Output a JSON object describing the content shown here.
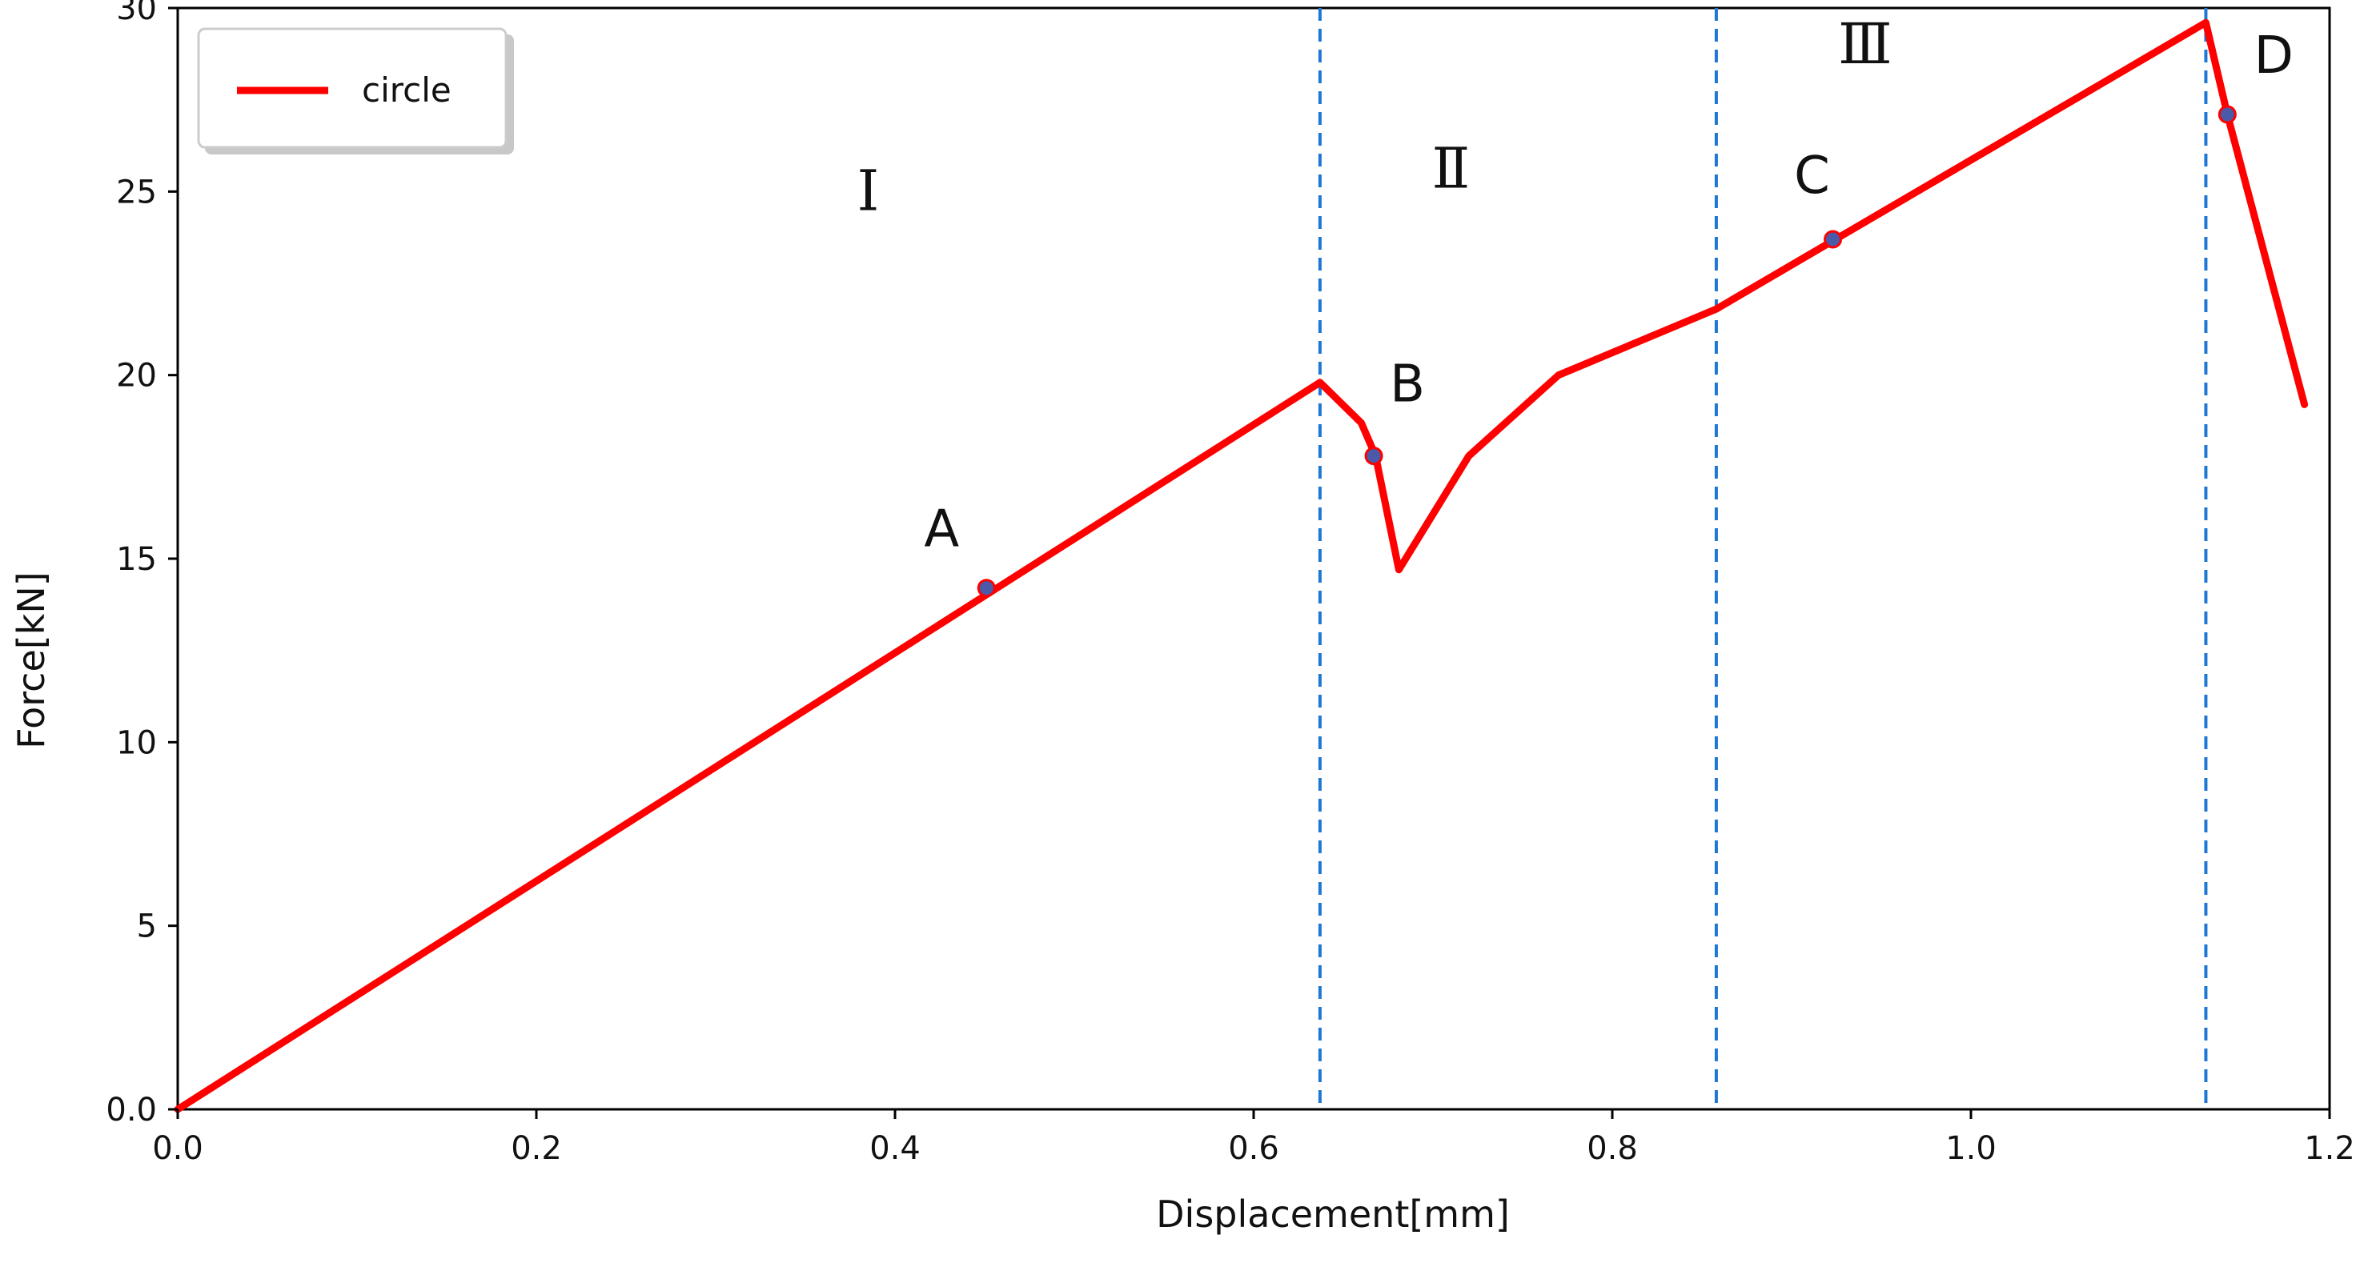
{
  "chart_data": {
    "type": "line",
    "title": "",
    "xlabel": "Displacement[mm]",
    "ylabel": "Force[kN]",
    "xlim": [
      0.0,
      1.2
    ],
    "ylim": [
      0.0,
      30
    ],
    "grid": false,
    "legend_position": "top-left",
    "x_ticks": [
      {
        "value": 0.0,
        "label": "0.0"
      },
      {
        "value": 0.2,
        "label": "0.2"
      },
      {
        "value": 0.4,
        "label": "0.4"
      },
      {
        "value": 0.6,
        "label": "0.6"
      },
      {
        "value": 0.8,
        "label": "0.8"
      },
      {
        "value": 1.0,
        "label": "1.0"
      },
      {
        "value": 1.2,
        "label": "1.2"
      }
    ],
    "y_ticks": [
      {
        "value": 0,
        "label": "0.0"
      },
      {
        "value": 5,
        "label": "5"
      },
      {
        "value": 10,
        "label": "10"
      },
      {
        "value": 15,
        "label": "15"
      },
      {
        "value": 20,
        "label": "20"
      },
      {
        "value": 25,
        "label": "25"
      },
      {
        "value": 30,
        "label": "30"
      }
    ],
    "series": [
      {
        "name": "circle",
        "color": "#ff0000",
        "x": [
          0.0,
          0.637,
          0.66,
          0.668,
          0.681,
          0.72,
          0.77,
          0.858,
          1.131,
          1.143,
          1.186
        ],
        "y": [
          0.0,
          19.8,
          18.7,
          17.8,
          14.7,
          17.8,
          20.0,
          21.8,
          29.6,
          27.1,
          19.2
        ]
      }
    ],
    "vertical_lines": [
      {
        "x": 0.637,
        "color": "#1f77d4"
      },
      {
        "x": 0.858,
        "color": "#1f77d4"
      },
      {
        "x": 1.131,
        "color": "#1f77d4"
      }
    ],
    "points": [
      {
        "label": "A",
        "x": 0.451,
        "y": 14.2,
        "color": "#4a5aa8"
      },
      {
        "label": "B",
        "x": 0.667,
        "y": 17.8,
        "color": "#4a5aa8"
      },
      {
        "label": "C",
        "x": 0.923,
        "y": 23.7,
        "color": "#4a5aa8"
      },
      {
        "label": "D",
        "x": 1.143,
        "y": 27.1,
        "color": "#4a5aa8"
      }
    ],
    "region_labels": [
      {
        "text": "Ⅰ",
        "x": 0.385,
        "y": 24.5
      },
      {
        "text": "Ⅱ",
        "x": 0.71,
        "y": 25.1
      },
      {
        "text": "Ⅲ",
        "x": 0.941,
        "y": 28.5
      }
    ]
  }
}
